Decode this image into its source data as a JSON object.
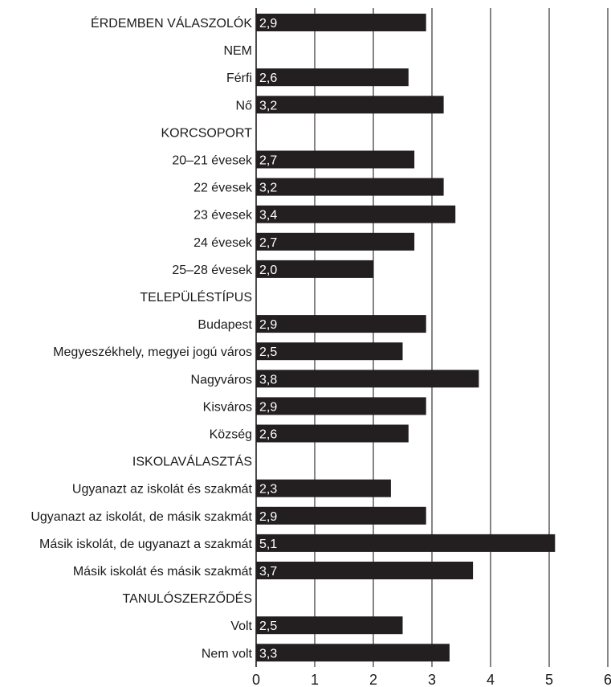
{
  "chart_data": {
    "type": "bar",
    "orientation": "horizontal",
    "categories": [
      "ÉRDEMBEN VÁLASZOLÓK",
      "NEM",
      "Férfi",
      "Nő",
      "KORCSOPORT",
      "20–21 évesek",
      "22 évesek",
      "23 évesek",
      "24 évesek",
      "25–28 évesek",
      "TELEPÜLÉSTÍPUS",
      "Budapest",
      "Megyeszékhely, megyei jogú város",
      "Nagyváros",
      "Kisváros",
      "Község",
      "ISKOLAVÁLASZTÁS",
      "Ugyanazt az iskolát és szakmát",
      "Ugyanazt az iskolát, de másik szakmát",
      "Másik iskolát, de ugyanazt a szakmát",
      "Másik iskolát és másik szakmát",
      "TANULÓSZERZŐDÉS",
      "Volt",
      "Nem volt"
    ],
    "values": [
      2.9,
      null,
      2.6,
      3.2,
      null,
      2.7,
      3.2,
      3.4,
      2.7,
      2.0,
      null,
      2.9,
      2.5,
      3.8,
      2.9,
      2.6,
      null,
      2.3,
      2.9,
      5.1,
      3.7,
      null,
      2.5,
      3.3
    ],
    "value_labels": [
      "2,9",
      "",
      "2,6",
      "3,2",
      "",
      "2,7",
      "3,2",
      "3,4",
      "2,7",
      "2,0",
      "",
      "2,9",
      "2,5",
      "3,8",
      "2,9",
      "2,6",
      "",
      "2,3",
      "2,9",
      "5,1",
      "3,7",
      "",
      "2,5",
      "3,3"
    ],
    "xlim": [
      0,
      6
    ],
    "xticks": [
      0,
      1,
      2,
      3,
      4,
      5,
      6
    ],
    "xtick_labels": [
      "0",
      "1",
      "2",
      "3",
      "4",
      "5",
      "6"
    ],
    "grid": "vertical",
    "bar_color": "#231f20",
    "grid_color": "#231f20"
  }
}
